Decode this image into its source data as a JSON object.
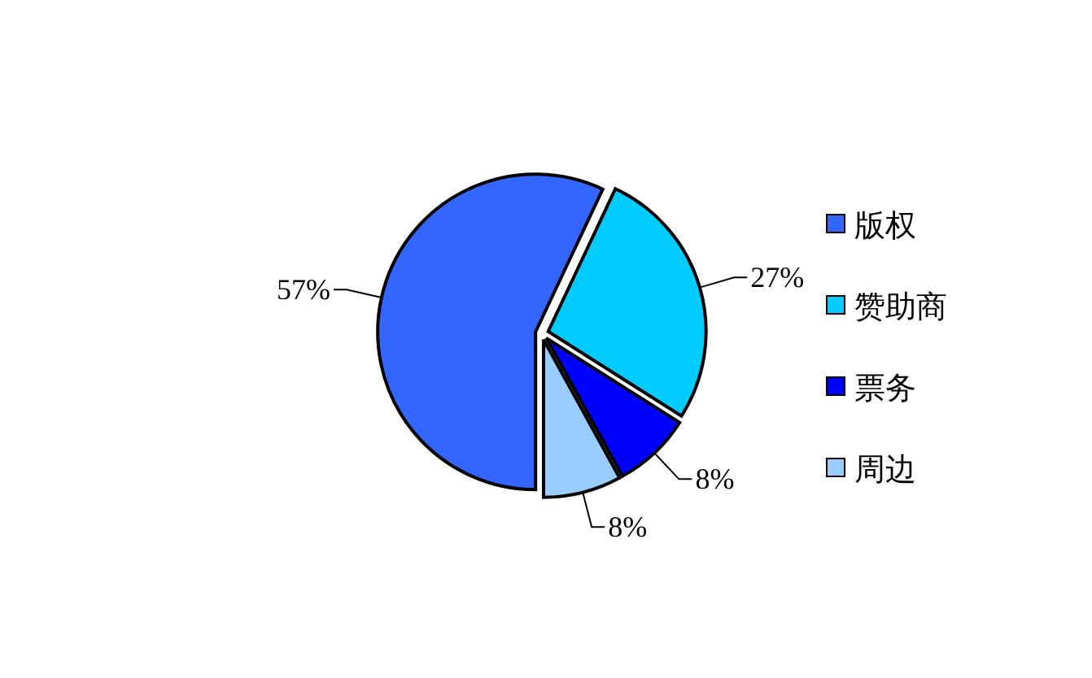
{
  "chart_data": {
    "type": "pie",
    "categories": [
      "版权",
      "赞助商",
      "票务",
      "周边"
    ],
    "values": [
      57,
      27,
      8,
      8
    ],
    "colors": [
      "#3366ff",
      "#00ccff",
      "#0000ff",
      "#99ccff"
    ],
    "value_labels": [
      "57%",
      "27%",
      "8%",
      "8%"
    ],
    "legend": "right"
  }
}
